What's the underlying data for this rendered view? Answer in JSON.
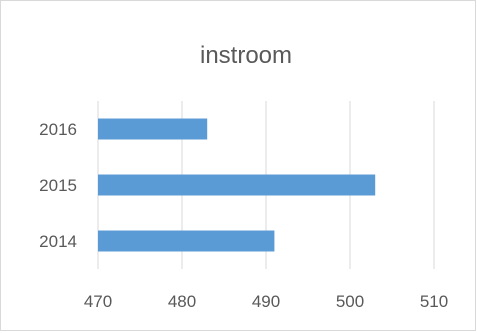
{
  "chart_data": {
    "type": "bar",
    "orientation": "horizontal",
    "title": "instroom",
    "categories": [
      "2014",
      "2015",
      "2016"
    ],
    "values": [
      491,
      503,
      483
    ],
    "xlim": [
      470,
      510
    ],
    "xticks": [
      "470",
      "480",
      "490",
      "500",
      "510"
    ],
    "grid": true,
    "legend": "none",
    "colors": {
      "bar": "#5b9bd5",
      "grid": "#d9d9d9",
      "text": "#595959"
    }
  }
}
